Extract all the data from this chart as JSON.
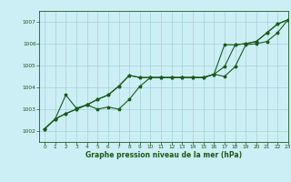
{
  "title": "Graphe pression niveau de la mer (hPa)",
  "background_color": "#cceef5",
  "plot_bg_color": "#cceef5",
  "grid_color": "#99cccc",
  "line_color": "#1a5c1a",
  "xlim": [
    -0.5,
    23
  ],
  "ylim": [
    1001.5,
    1007.5
  ],
  "yticks": [
    1002,
    1003,
    1004,
    1005,
    1006,
    1007
  ],
  "xticks": [
    0,
    1,
    2,
    3,
    4,
    5,
    6,
    7,
    8,
    9,
    10,
    11,
    12,
    13,
    14,
    15,
    16,
    17,
    18,
    19,
    20,
    21,
    22,
    23
  ],
  "hours": [
    0,
    1,
    2,
    3,
    4,
    5,
    6,
    7,
    8,
    9,
    10,
    11,
    12,
    13,
    14,
    15,
    16,
    17,
    18,
    19,
    20,
    21,
    22,
    23
  ],
  "line1": [
    1002.1,
    1002.55,
    1002.8,
    1003.0,
    1003.2,
    1003.45,
    1003.65,
    1004.05,
    1004.55,
    1004.45,
    1004.45,
    1004.45,
    1004.45,
    1004.45,
    1004.45,
    1004.45,
    1004.6,
    1005.95,
    1005.95,
    1006.0,
    1006.1,
    1006.5,
    1006.9,
    1007.1
  ],
  "line2": [
    1002.1,
    1002.55,
    1002.8,
    1003.0,
    1003.2,
    1003.45,
    1003.65,
    1004.05,
    1004.55,
    1004.45,
    1004.45,
    1004.45,
    1004.45,
    1004.45,
    1004.45,
    1004.45,
    1004.6,
    1004.95,
    1005.95,
    1006.0,
    1006.1,
    1006.5,
    1006.9,
    1007.1
  ],
  "line3": [
    1002.1,
    1002.55,
    1003.65,
    1003.05,
    1003.2,
    1003.0,
    1003.1,
    1003.0,
    1003.45,
    1004.05,
    1004.45,
    1004.45,
    1004.45,
    1004.45,
    1004.45,
    1004.45,
    1004.6,
    1004.5,
    1004.95,
    1005.95,
    1006.0,
    1006.1,
    1006.5,
    1007.1
  ],
  "title_fontsize": 5.5,
  "tick_fontsize": 4.2,
  "linewidth": 0.8,
  "markersize": 2.5
}
